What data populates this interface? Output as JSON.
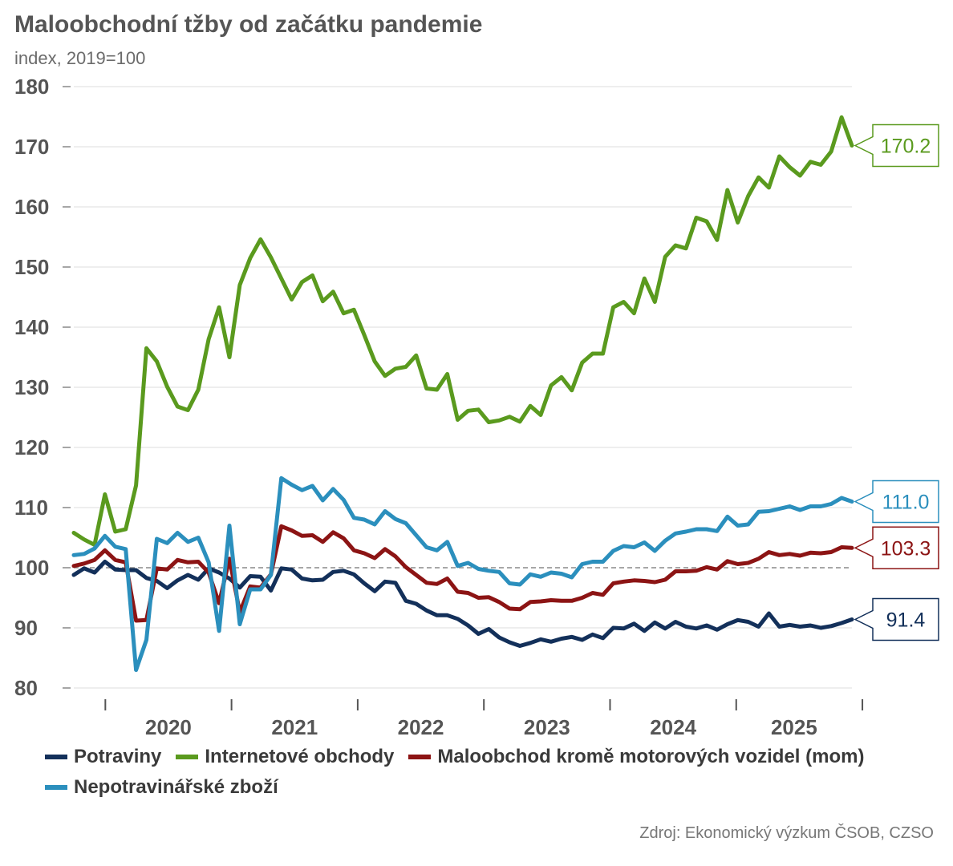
{
  "chart_data": {
    "type": "line",
    "title": "Maloobchodní tžby od začátku pandemie",
    "subtitle": "index, 2019=100",
    "source": "Zdroj: Ekonomický výzkum ČSOB, CZSO",
    "ylim": [
      80,
      180
    ],
    "yticks": [
      80,
      90,
      100,
      110,
      120,
      130,
      140,
      150,
      160,
      170,
      180
    ],
    "x_start": 2019.75,
    "x_end": 2025.917,
    "year_labels": [
      "2020",
      "2021",
      "2022",
      "2023",
      "2024",
      "2025"
    ],
    "reference_line": 100,
    "series": [
      {
        "name": "Potraviny",
        "color": "#13305a",
        "end_label": "91.4",
        "values": [
          98.8,
          99.9,
          99.2,
          101.0,
          99.7,
          99.6,
          99.6,
          98.3,
          97.8,
          96.6,
          97.9,
          98.8,
          98.0,
          99.9,
          99.2,
          98.2,
          96.7,
          98.6,
          98.5,
          96.2,
          99.9,
          99.7,
          98.2,
          97.9,
          98.0,
          99.3,
          99.5,
          98.9,
          97.4,
          96.1,
          97.7,
          97.5,
          94.5,
          94.0,
          92.9,
          92.1,
          92.1,
          91.5,
          90.4,
          89.0,
          89.8,
          88.4,
          87.6,
          87.0,
          87.5,
          88.1,
          87.7,
          88.2,
          88.5,
          88.0,
          88.9,
          88.3,
          90.0,
          89.9,
          90.7,
          89.5,
          90.9,
          89.9,
          91.0,
          90.2,
          89.9,
          90.4,
          89.7,
          90.6,
          91.3,
          91.0,
          90.2,
          92.4,
          90.2,
          90.5,
          90.2,
          90.4,
          90.0,
          90.3,
          90.8,
          91.4
        ]
      },
      {
        "name": "Internetové obchody",
        "color": "#5a9a1e",
        "end_label": "170.2",
        "values": [
          105.8,
          104.7,
          103.8,
          112.2,
          106.0,
          106.4,
          113.7,
          136.5,
          134.3,
          130.1,
          126.8,
          126.2,
          129.6,
          138.0,
          143.3,
          135.0,
          147.0,
          151.5,
          154.6,
          151.6,
          148.1,
          144.6,
          147.5,
          148.6,
          144.3,
          145.9,
          142.3,
          142.9,
          138.7,
          134.3,
          131.9,
          133.1,
          133.4,
          135.3,
          129.8,
          129.6,
          132.2,
          124.6,
          126.1,
          126.3,
          124.2,
          124.5,
          125.1,
          124.3,
          126.9,
          125.4,
          130.3,
          131.7,
          129.5,
          134.1,
          135.6,
          135.6,
          143.3,
          144.2,
          142.3,
          148.1,
          144.2,
          151.7,
          153.6,
          153.1,
          158.2,
          157.6,
          154.5,
          162.8,
          157.4,
          161.8,
          164.9,
          163.2,
          168.4,
          166.6,
          165.2,
          167.5,
          167.0,
          169.2,
          174.9,
          170.2
        ]
      },
      {
        "name": "Maloobchod kromě motorových vozidel (mom)",
        "color": "#8c1414",
        "end_label": "103.3",
        "values": [
          100.3,
          100.7,
          101.3,
          102.9,
          101.3,
          100.9,
          91.2,
          91.3,
          99.9,
          99.7,
          101.3,
          100.9,
          101.0,
          99.2,
          94.1,
          101.5,
          92.6,
          96.9,
          96.7,
          98.9,
          106.9,
          106.2,
          105.3,
          105.4,
          104.3,
          105.9,
          104.9,
          102.9,
          102.4,
          101.6,
          103.1,
          101.9,
          100.1,
          98.8,
          97.5,
          97.3,
          98.2,
          96.0,
          95.8,
          95.0,
          95.1,
          94.3,
          93.2,
          93.1,
          94.3,
          94.4,
          94.6,
          94.5,
          94.5,
          95.0,
          95.8,
          95.5,
          97.4,
          97.7,
          97.9,
          97.8,
          97.6,
          98.0,
          99.4,
          99.4,
          99.5,
          100.1,
          99.7,
          101.1,
          100.6,
          100.8,
          101.5,
          102.6,
          102.1,
          102.3,
          102.0,
          102.5,
          102.4,
          102.6,
          103.4,
          103.3
        ]
      },
      {
        "name": "Nepotravinářské zboží",
        "color": "#2b8fbd",
        "end_label": "111.0",
        "values": [
          102.1,
          102.3,
          103.2,
          105.3,
          103.5,
          103.1,
          83.0,
          88.0,
          104.8,
          104.1,
          105.8,
          104.3,
          105.0,
          100.9,
          89.5,
          107.0,
          90.6,
          96.4,
          96.4,
          98.8,
          114.9,
          113.8,
          112.9,
          113.6,
          111.2,
          113.1,
          111.3,
          108.3,
          108.0,
          107.2,
          109.4,
          108.1,
          107.4,
          105.4,
          103.4,
          102.9,
          104.3,
          100.3,
          100.8,
          99.8,
          99.5,
          99.3,
          97.4,
          97.2,
          98.9,
          98.5,
          99.2,
          99.0,
          98.4,
          100.6,
          101.0,
          101.0,
          102.8,
          103.6,
          103.4,
          104.2,
          102.8,
          104.5,
          105.7,
          106.0,
          106.4,
          106.4,
          106.1,
          108.5,
          107.0,
          107.2,
          109.3,
          109.4,
          109.8,
          110.2,
          109.6,
          110.2,
          110.2,
          110.6,
          111.6,
          111.0
        ]
      }
    ]
  }
}
